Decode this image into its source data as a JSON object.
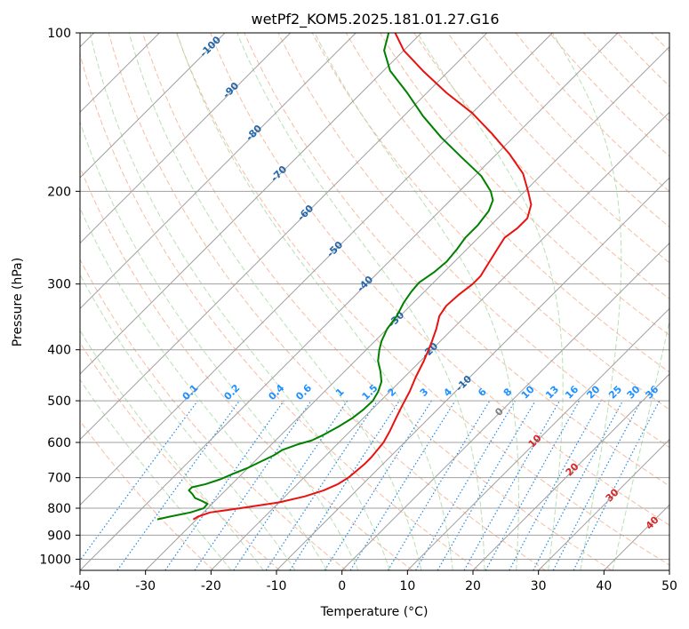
{
  "chart_data": {
    "type": "line",
    "title": "wetPf2_KOM5.2025.181.01.27.G16",
    "xlabel": "Temperature (°C)",
    "ylabel": "Pressure (hPa)",
    "xlim": [
      -40,
      50
    ],
    "ylim_pressure": [
      1050,
      100
    ],
    "x_ticks": [
      -40,
      -30,
      -20,
      -10,
      0,
      10,
      20,
      30,
      40,
      50
    ],
    "y_ticks": [
      100,
      200,
      300,
      400,
      500,
      600,
      700,
      800,
      900,
      1000
    ],
    "grid": true,
    "skew": "temperature isotherms skewed 45 degrees",
    "series": [
      {
        "name": "",
        "color": "#e8120e",
        "points": [
          [
            -30.5,
            840
          ],
          [
            -30.2,
            830
          ],
          [
            -29,
            815
          ],
          [
            -25,
            800
          ],
          [
            -20,
            780
          ],
          [
            -17,
            760
          ],
          [
            -15,
            740
          ],
          [
            -13.8,
            720
          ],
          [
            -13.2,
            700
          ],
          [
            -13,
            680
          ],
          [
            -12.8,
            660
          ],
          [
            -12.8,
            640
          ],
          [
            -13,
            620
          ],
          [
            -13.2,
            600
          ],
          [
            -14,
            570
          ],
          [
            -15,
            540
          ],
          [
            -16,
            510
          ],
          [
            -17,
            480
          ],
          [
            -18.3,
            450
          ],
          [
            -19.5,
            420
          ],
          [
            -21,
            390
          ],
          [
            -22.5,
            365
          ],
          [
            -24,
            345
          ],
          [
            -24.5,
            330
          ],
          [
            -24.3,
            315
          ],
          [
            -23.8,
            300
          ],
          [
            -23.8,
            290
          ],
          [
            -24.5,
            275
          ],
          [
            -25.5,
            255
          ],
          [
            -26,
            245
          ],
          [
            -25.5,
            235
          ],
          [
            -25.5,
            225
          ],
          [
            -27,
            212
          ],
          [
            -29.5,
            200
          ],
          [
            -33,
            185
          ],
          [
            -38,
            170
          ],
          [
            -44,
            155
          ],
          [
            -50,
            142
          ],
          [
            -57,
            130
          ],
          [
            -64,
            118
          ],
          [
            -70,
            108
          ],
          [
            -74,
            100
          ]
        ]
      },
      {
        "name": "",
        "color": "#008000",
        "points": [
          [
            -36,
            840
          ],
          [
            -34.5,
            830
          ],
          [
            -32,
            815
          ],
          [
            -30.6,
            800
          ],
          [
            -30.7,
            785
          ],
          [
            -32,
            775
          ],
          [
            -33.5,
            765
          ],
          [
            -34.5,
            752
          ],
          [
            -35.6,
            740
          ],
          [
            -35.6,
            730
          ],
          [
            -34,
            720
          ],
          [
            -32.5,
            705
          ],
          [
            -31.5,
            690
          ],
          [
            -30,
            670
          ],
          [
            -29,
            652
          ],
          [
            -28,
            635
          ],
          [
            -27.5,
            620
          ],
          [
            -26,
            605
          ],
          [
            -24.5,
            595
          ],
          [
            -23.5,
            580
          ],
          [
            -22.5,
            560
          ],
          [
            -21.7,
            540
          ],
          [
            -21.3,
            520
          ],
          [
            -21.2,
            500
          ],
          [
            -21.8,
            480
          ],
          [
            -22.8,
            460
          ],
          [
            -24.5,
            440
          ],
          [
            -26.5,
            420
          ],
          [
            -28,
            400
          ],
          [
            -29,
            385
          ],
          [
            -30,
            365
          ],
          [
            -30.5,
            345
          ],
          [
            -31.5,
            325
          ],
          [
            -32,
            310
          ],
          [
            -32.2,
            298
          ],
          [
            -31.5,
            285
          ],
          [
            -31.2,
            272
          ],
          [
            -31.5,
            258
          ],
          [
            -32,
            245
          ],
          [
            -32,
            232
          ],
          [
            -32.5,
            218
          ],
          [
            -33.5,
            208
          ],
          [
            -35.2,
            200
          ],
          [
            -39,
            187
          ],
          [
            -45,
            172
          ],
          [
            -51,
            158
          ],
          [
            -57,
            144
          ],
          [
            -63,
            130
          ],
          [
            -69,
            118
          ],
          [
            -73,
            108
          ],
          [
            -75,
            100
          ]
        ]
      }
    ],
    "isotherm_labels": [
      {
        "text": "-100",
        "value": -100
      },
      {
        "text": "-90",
        "value": -90
      },
      {
        "text": "-80",
        "value": -80
      },
      {
        "text": "-70",
        "value": -70
      },
      {
        "text": "-60",
        "value": -60
      },
      {
        "text": "-50",
        "value": -50
      },
      {
        "text": "-40",
        "value": -40
      },
      {
        "text": "-30",
        "value": -30
      },
      {
        "text": "-20",
        "value": -20
      },
      {
        "text": "-10",
        "value": -10
      },
      {
        "text": "0",
        "value": 0
      },
      {
        "text": "10",
        "value": 10
      },
      {
        "text": "20",
        "value": 20
      },
      {
        "text": "30",
        "value": 30
      },
      {
        "text": "40",
        "value": 40
      }
    ],
    "mixing_ratio_labels": [
      "0.1",
      "0.2",
      "0.4",
      "0.6",
      "1",
      "1.5",
      "2",
      "3",
      "4",
      "6",
      "8",
      "10",
      "13",
      "16",
      "20",
      "25",
      "30",
      "36"
    ],
    "mixing_ratio_values": [
      0.1,
      0.2,
      0.4,
      0.6,
      1,
      1.5,
      2,
      3,
      4,
      6,
      8,
      10,
      13,
      16,
      20,
      25,
      30,
      36
    ],
    "colors": {
      "temperature": "#e8120e",
      "dewpoint": "#008000",
      "dry_adiabat": "#f4a582",
      "moist_adiabat": "#a6d8a0",
      "mixing_ratio": "#1e88e5",
      "isotherm_label_dark": "#2166ac",
      "isotherm_label_mixing": "#1e90ff",
      "isotherm_label_red": "#d62728",
      "isotherm_label_zero": "#808080",
      "grid": "#a0a0a0"
    }
  }
}
